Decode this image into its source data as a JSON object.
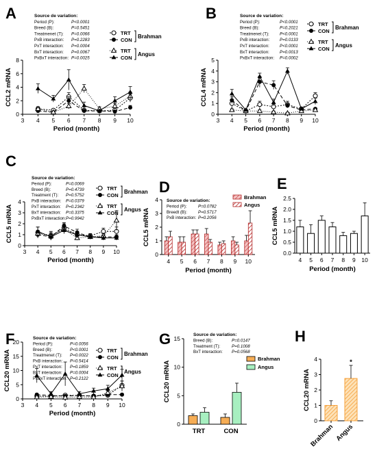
{
  "colors": {
    "brahman_fill": "#f6ad55",
    "angus_fill": "#a7efc0",
    "stripe": "#b22222",
    "hatch_light": "#f4c2c2"
  },
  "panels": {
    "A": {
      "label": "A",
      "ylabel": "CCL2 mRNA",
      "xlabel": "Period (month)",
      "sov_title": "Source de variation:",
      "sov": [
        [
          "Period (P):",
          "P<0.0001"
        ],
        [
          "Breed (B):",
          "P=0.5451"
        ],
        [
          "Treatmenet (T):",
          "P=0.0066"
        ],
        [
          "PxB interaction:",
          "P=0.2283"
        ],
        [
          "PxT interaction:",
          "P=0.0004"
        ],
        [
          "BxT interaction:",
          "P=0.0067"
        ],
        [
          "PxBxT interaction:",
          "P=0.0025"
        ]
      ],
      "legend": {
        "trt": "TRT",
        "con": "CON",
        "breed1": "Brahman",
        "breed2": "Angus"
      },
      "chart_data": {
        "type": "line",
        "xlabel": "Period (month)",
        "ylabel": "CCL2 mRNA",
        "x": [
          4,
          5,
          6,
          7,
          8,
          9,
          10
        ],
        "xlim": [
          3,
          10
        ],
        "ylim": [
          0,
          8
        ],
        "xticks": [
          "3",
          "4",
          "5",
          "6",
          "7",
          "8",
          "9",
          "10"
        ],
        "yticks": [
          "0",
          "2",
          "4",
          "6",
          "8"
        ],
        "series": [
          {
            "name": "Brahman TRT",
            "values": [
              0.8,
              0.6,
              2.6,
              0.6,
              0.5,
              0.6,
              2.4
            ],
            "errors": [
              0.3,
              0.2,
              0.6,
              0.2,
              0.1,
              0.2,
              0.6
            ]
          },
          {
            "name": "Brahman CON",
            "values": [
              0.5,
              0.3,
              2.0,
              0.5,
              0.5,
              0.4,
              1.0
            ],
            "errors": [
              0.2,
              0.1,
              0.6,
              0.2,
              0.1,
              0.1,
              0.3
            ]
          },
          {
            "name": "Angus TRT",
            "values": [
              0.8,
              0.3,
              1.2,
              3.8,
              0.8,
              1.2,
              2.7
            ],
            "errors": [
              0.3,
              0.1,
              0.4,
              0.6,
              0.3,
              0.4,
              0.6
            ]
          },
          {
            "name": "Angus CON",
            "values": [
              3.8,
              2.3,
              5.1,
              1.3,
              0.5,
              2.0,
              3.3
            ],
            "errors": [
              0.7,
              0.5,
              1.5,
              0.5,
              0.2,
              0.6,
              0.8
            ]
          }
        ]
      }
    },
    "B": {
      "label": "B",
      "ylabel": "CCL4 mRNA",
      "xlabel": "Period (month)",
      "sov_title": "Source de variation:",
      "sov": [
        [
          "Period (P):",
          "P<0.0001"
        ],
        [
          "Breed (B):",
          "P=0.2021"
        ],
        [
          "Treatmenet (T):",
          "P<0.0001"
        ],
        [
          "PxB interaction:",
          "P=0.0133"
        ],
        [
          "PxT interaction:",
          "P<0.0001"
        ],
        [
          "BxT interaction:",
          "P=0.0013"
        ],
        [
          "PxBxT interaction:",
          "P=0.0002"
        ]
      ],
      "legend": {
        "trt": "TRT",
        "con": "CON",
        "breed1": "Brahman",
        "breed2": "Angus"
      },
      "chart_data": {
        "type": "line",
        "xlabel": "Period (month)",
        "ylabel": "CCL4 mRNA",
        "x": [
          4,
          5,
          6,
          7,
          8,
          9,
          10
        ],
        "xlim": [
          3,
          10
        ],
        "ylim": [
          0,
          5
        ],
        "xticks": [
          "3",
          "4",
          "5",
          "6",
          "7",
          "8",
          "9",
          "10"
        ],
        "yticks": [
          "0",
          "1",
          "2",
          "3",
          "4",
          "5"
        ],
        "series": [
          {
            "name": "Brahman TRT",
            "values": [
              1.0,
              0.3,
              0.9,
              0.7,
              0.9,
              0.5,
              1.7
            ],
            "errors": [
              0.3,
              0.1,
              0.3,
              0.2,
              0.3,
              0.1,
              0.3
            ]
          },
          {
            "name": "Brahman CON",
            "values": [
              1.3,
              0.3,
              3.0,
              2.7,
              0.8,
              0.4,
              0.5
            ],
            "errors": [
              0.3,
              0.1,
              0.5,
              0.4,
              0.2,
              0.1,
              0.1
            ]
          },
          {
            "name": "Angus TRT",
            "values": [
              0.4,
              0.3,
              0.3,
              0.2,
              0.1,
              0.3,
              0.4
            ],
            "errors": [
              0.1,
              0.1,
              0.1,
              0.1,
              0.05,
              0.1,
              0.1
            ]
          },
          {
            "name": "Angus CON",
            "values": [
              1.9,
              0.4,
              3.5,
              1.1,
              4.0,
              0.5,
              1.2
            ],
            "errors": [
              0.4,
              0.1,
              0.3,
              0.3,
              0.3,
              0.1,
              0.3
            ]
          }
        ]
      }
    },
    "C": {
      "label": "C",
      "ylabel": "CCL5 mRNA",
      "xlabel": "Period (month)",
      "sov_title": "Source de variation:",
      "sov": [
        [
          "Period (P):",
          "P=0.0069"
        ],
        [
          "Breed (B):",
          "P=0.4739"
        ],
        [
          "Treatment (T):",
          "P=0.5752"
        ],
        [
          "PxB interaction:",
          "P=0.0379"
        ],
        [
          "PxT interaction:",
          "P=0.2342"
        ],
        [
          "BxT interaction:",
          "P=0.3375"
        ],
        [
          "PxBxT interaction:",
          "P=0.9942"
        ]
      ],
      "legend": {
        "trt": "TRT",
        "con": "CON",
        "breed1": "Brahman",
        "breed2": "Angus"
      },
      "chart_data": {
        "type": "line",
        "xlabel": "Period (month)",
        "ylabel": "CCL5 mRNA",
        "x": [
          4,
          5,
          6,
          7,
          8,
          9,
          10
        ],
        "xlim": [
          3,
          10
        ],
        "ylim": [
          0,
          4
        ],
        "xticks": [
          "3",
          "4",
          "5",
          "6",
          "7",
          "8",
          "9",
          "10"
        ],
        "yticks": [
          "0",
          "1",
          "2",
          "3",
          "4"
        ],
        "series": [
          {
            "name": "Brahman TRT",
            "values": [
              1.2,
              0.9,
              1.6,
              1.0,
              0.9,
              1.3,
              1.3
            ],
            "errors": [
              0.5,
              0.4,
              0.4,
              0.3,
              0.2,
              0.3,
              0.4
            ]
          },
          {
            "name": "Brahman CON",
            "values": [
              1.0,
              0.8,
              1.8,
              1.2,
              0.8,
              0.8,
              0.8
            ],
            "errors": [
              0.3,
              0.3,
              0.3,
              0.3,
              0.2,
              0.2,
              0.2
            ]
          },
          {
            "name": "Angus TRT",
            "values": [
              1.1,
              0.9,
              1.5,
              0.7,
              0.8,
              0.9,
              2.3
            ],
            "errors": [
              0.3,
              0.3,
              0.4,
              0.2,
              0.2,
              0.2,
              0.9
            ]
          },
          {
            "name": "Angus CON",
            "values": [
              1.3,
              0.8,
              1.4,
              1.0,
              0.8,
              0.7,
              0.7
            ],
            "errors": [
              0.4,
              0.3,
              0.3,
              0.3,
              0.2,
              0.2,
              0.2
            ]
          }
        ]
      }
    },
    "D": {
      "label": "D",
      "ylabel": "CCL5 mRNA",
      "xlabel": "Period (month)",
      "sov_title": "Source de variation:",
      "sov": [
        [
          "Period (P):",
          "P=0.0782"
        ],
        [
          "Breedt (B):",
          "P=0.5717"
        ],
        [
          "PxB interaction:",
          "P=0.2056"
        ]
      ],
      "legend": {
        "brahman": "Brahman",
        "angus": "Angus"
      },
      "chart_data": {
        "type": "bar",
        "xlabel": "Period (month)",
        "ylabel": "CCL5 mRNA",
        "categories": [
          "4",
          "5",
          "6",
          "7",
          "8",
          "9",
          "10"
        ],
        "ylim": [
          0,
          4
        ],
        "yticks": [
          "0",
          "1",
          "2",
          "3",
          "4"
        ],
        "series": [
          {
            "name": "Brahman",
            "values": [
              1.0,
              0.9,
              1.5,
              1.5,
              0.7,
              1.0,
              1.0
            ],
            "errors": [
              0.3,
              0.4,
              0.3,
              0.4,
              0.2,
              0.3,
              0.4
            ]
          },
          {
            "name": "Angus",
            "values": [
              1.3,
              0.9,
              1.5,
              0.9,
              0.8,
              0.7,
              2.3
            ],
            "errors": [
              0.4,
              0.4,
              0.3,
              0.2,
              0.2,
              0.2,
              0.9
            ]
          }
        ]
      }
    },
    "E": {
      "label": "E",
      "ylabel": "CCL5 mRNA",
      "xlabel": "Period (month)",
      "chart_data": {
        "type": "bar",
        "xlabel": "Period (month)",
        "ylabel": "CCL5 mRNA",
        "categories": [
          "4",
          "5",
          "6",
          "7",
          "8",
          "9",
          "10"
        ],
        "ylim": [
          0,
          2.5
        ],
        "yticks": [
          "0.0",
          "0.5",
          "1.0",
          "1.5",
          "2.0",
          "2.5"
        ],
        "values": [
          1.2,
          0.9,
          1.5,
          1.2,
          0.8,
          0.9,
          1.7
        ],
        "errors": [
          0.3,
          0.4,
          0.2,
          0.2,
          0.15,
          0.1,
          0.6
        ]
      }
    },
    "F": {
      "label": "F",
      "ylabel": "CCL20 mRNA",
      "xlabel": "Period (month)",
      "sov_title": "Source de variation:",
      "sov": [
        [
          "Period (P):",
          "P=0.0056"
        ],
        [
          "Breed (B):",
          "P<0.0001"
        ],
        [
          "Treatmenet (T):",
          "P=0.0022"
        ],
        [
          "PxB interaction:",
          "P=0.5414"
        ],
        [
          "PxT interaction:",
          "P=0.1859"
        ],
        [
          "BxT interaction:",
          "P=0.0004"
        ],
        [
          "PxBxT interaction:",
          "P=0.2122"
        ]
      ],
      "legend": {
        "trt": "TRT",
        "con": "CON",
        "breed1": "Brahman",
        "breed2": "Angus"
      },
      "chart_data": {
        "type": "line",
        "xlabel": "Period (month)",
        "ylabel": "CCL20 mRNA",
        "x": [
          4,
          5,
          6,
          7,
          8,
          9,
          10
        ],
        "xlim": [
          3,
          10
        ],
        "ylim": [
          0,
          20
        ],
        "xticks": [
          "3",
          "4",
          "5",
          "6",
          "7",
          "8",
          "9",
          "10"
        ],
        "yticks": [
          "0",
          "5",
          "10",
          "15",
          "20"
        ],
        "series": [
          {
            "name": "Brahman TRT",
            "values": [
              1.0,
              0.9,
              1.3,
              1.2,
              1.0,
              1.3,
              4.8
            ],
            "errors": [
              0.4,
              0.3,
              0.5,
              0.4,
              0.3,
              0.4,
              1.5
            ]
          },
          {
            "name": "Brahman CON",
            "values": [
              1.5,
              1.2,
              1.0,
              1.2,
              1.0,
              1.5,
              1.5
            ],
            "errors": [
              0.4,
              0.4,
              0.3,
              0.4,
              0.3,
              0.4,
              0.4
            ]
          },
          {
            "name": "Angus TRT",
            "values": [
              0.6,
              0.8,
              0.5,
              0.7,
              0.6,
              2.2,
              4.5
            ],
            "errors": [
              0.2,
              0.2,
              0.2,
              0.2,
              0.2,
              0.7,
              1.8
            ]
          },
          {
            "name": "Angus CON",
            "values": [
              8.2,
              1.8,
              8.8,
              1.8,
              2.8,
              3.6,
              8.4
            ],
            "errors": [
              2.5,
              0.8,
              4.2,
              0.8,
              1.0,
              1.2,
              2.0
            ]
          }
        ]
      }
    },
    "G": {
      "label": "G",
      "ylabel": "CCL20 mRNA",
      "sov_title": "Source de variation:",
      "sov": [
        [
          "Breed (B):",
          "P=0.0147"
        ],
        [
          "Treatment (T):",
          "P=0.1008"
        ],
        [
          "BxT interaction:",
          "P=0.0568"
        ]
      ],
      "legend": {
        "brahman": "Brahman",
        "angus": "Angus"
      },
      "chart_data": {
        "type": "bar",
        "ylabel": "CCL20 mRNA",
        "categories": [
          "TRT",
          "CON"
        ],
        "ylim": [
          0,
          15
        ],
        "yticks": [
          "0",
          "5",
          "10",
          "15"
        ],
        "series": [
          {
            "name": "Brahman",
            "values": [
              1.5,
              1.2
            ],
            "errors": [
              0.3,
              0.6
            ]
          },
          {
            "name": "Angus",
            "values": [
              2.1,
              5.6
            ],
            "errors": [
              0.8,
              1.6
            ]
          }
        ]
      }
    },
    "H": {
      "label": "H",
      "ylabel": "CCL20 mRNA",
      "annotation": "*",
      "chart_data": {
        "type": "bar",
        "ylabel": "CCL20 mRNA",
        "categories": [
          "Brahman",
          "Angus"
        ],
        "ylim": [
          0,
          4
        ],
        "yticks": [
          "0",
          "1",
          "2",
          "3",
          "4"
        ],
        "values": [
          1.0,
          2.75
        ],
        "errors": [
          0.3,
          0.85
        ]
      }
    }
  }
}
